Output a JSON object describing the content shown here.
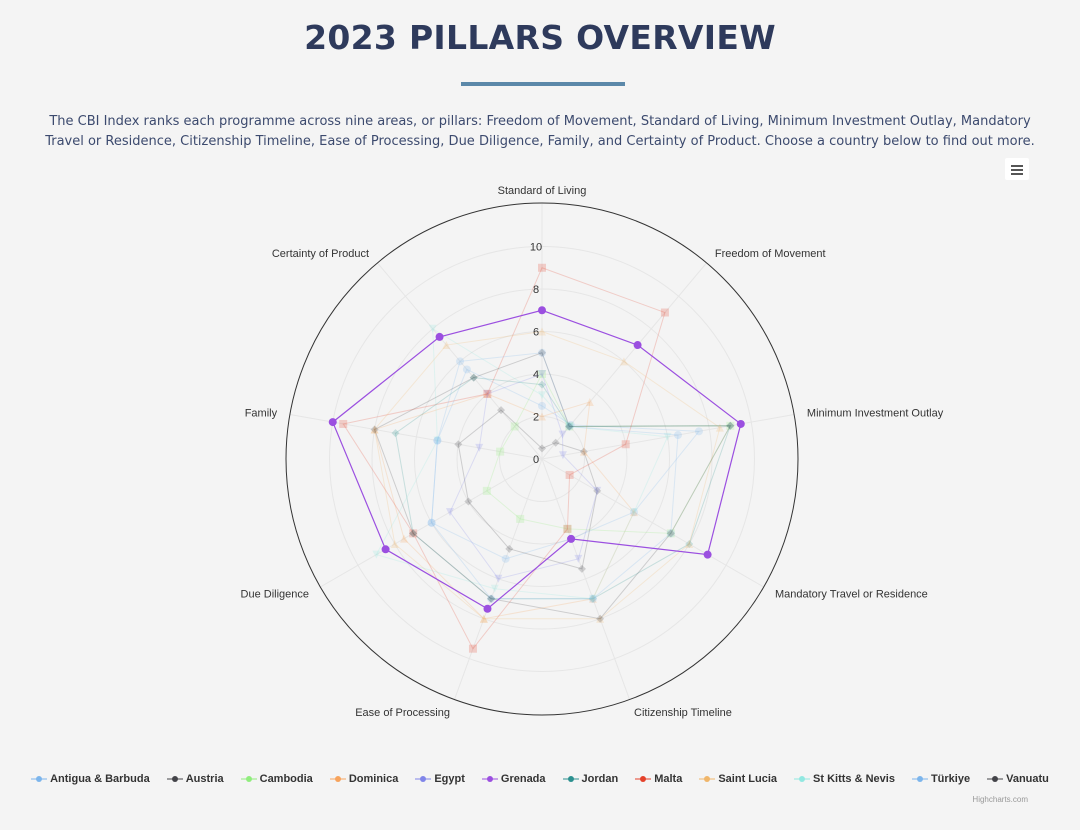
{
  "page": {
    "title": "2023 PILLARS OVERVIEW",
    "description": "The CBI Index ranks each programme across nine areas, or pillars: Freedom of Movement, Standard of Living, Minimum Investment Outlay, Mandatory Travel or Residence, Citizenship Timeline, Ease of Processing, Due Diligence, Family, and Certainty of Product. Choose a country below to find out more.",
    "menu_icon": "hamburger-menu-icon",
    "credits": "Highcharts.com",
    "accent_color": "#5b88a9",
    "title_color": "#2e3a5c"
  },
  "chart_data": {
    "type": "radar",
    "title": "",
    "categories": [
      "Standard of Living",
      "Freedom of Movement",
      "Minimum Investment Outlay",
      "Mandatory Travel or Residence",
      "Citizenship Timeline",
      "Ease of Processing",
      "Due Diligence",
      "Family",
      "Certainty of Product"
    ],
    "ylim": [
      0,
      10
    ],
    "tick_labels": [
      "0",
      "2",
      "4",
      "6",
      "8",
      "10"
    ],
    "grid": true,
    "legend_position": "bottom",
    "series": [
      {
        "name": "Antigua & Barbuda",
        "color": "#7cb5ec",
        "marker": "circle",
        "visible": false,
        "values": [
          2.5,
          2.1,
          7.5,
          5.0,
          4.0,
          5.0,
          6.0,
          5.0,
          5.5
        ]
      },
      {
        "name": "Austria",
        "color": "#434348",
        "marker": "diamond",
        "visible": false,
        "values": [
          0.5,
          1.0,
          2.0,
          3.0,
          5.5,
          4.5,
          4.0,
          4.0,
          3.0
        ]
      },
      {
        "name": "Cambodia",
        "color": "#90ed7d",
        "marker": "square",
        "visible": false,
        "values": [
          4.0,
          2.0,
          9.0,
          7.0,
          3.5,
          3.0,
          3.0,
          2.0,
          2.0
        ]
      },
      {
        "name": "Dominica",
        "color": "#f7a35c",
        "marker": "triangle",
        "visible": false,
        "values": [
          2.0,
          3.5,
          2.0,
          5.0,
          7.0,
          8.0,
          7.5,
          8.0,
          4.0
        ]
      },
      {
        "name": "Egypt",
        "color": "#8085e9",
        "marker": "triangle-down",
        "visible": false,
        "values": [
          4.0,
          1.5,
          1.0,
          3.0,
          5.0,
          6.0,
          5.0,
          3.0,
          4.0
        ]
      },
      {
        "name": "Grenada",
        "color": "#9b4fe0",
        "marker": "circle",
        "visible": true,
        "values": [
          7.0,
          7.0,
          9.5,
          9.0,
          4.0,
          7.5,
          8.5,
          10.0,
          7.5
        ]
      },
      {
        "name": "Jordan",
        "color": "#2b908f",
        "marker": "diamond",
        "visible": false,
        "values": [
          3.5,
          2.0,
          9.0,
          8.0,
          7.0,
          7.0,
          7.0,
          7.0,
          5.0
        ]
      },
      {
        "name": "Malta",
        "color": "#e4412a",
        "marker": "square",
        "visible": false,
        "values": [
          9.0,
          9.0,
          4.0,
          1.5,
          3.5,
          9.5,
          7.0,
          9.5,
          4.0
        ]
      },
      {
        "name": "Saint Lucia",
        "color": "#f0b66a",
        "marker": "triangle",
        "visible": false,
        "values": [
          6.0,
          6.0,
          8.5,
          8.0,
          8.0,
          8.0,
          8.0,
          8.0,
          7.0
        ]
      },
      {
        "name": "St Kitts & Nevis",
        "color": "#91e8e1",
        "marker": "triangle-down",
        "visible": false,
        "values": [
          3.0,
          2.0,
          6.0,
          5.0,
          7.0,
          6.5,
          9.0,
          5.0,
          8.0
        ]
      },
      {
        "name": "Türkiye",
        "color": "#7cb5ec",
        "marker": "circle",
        "visible": false,
        "values": [
          5.0,
          2.0,
          6.5,
          7.0,
          7.0,
          7.0,
          6.0,
          5.0,
          6.0
        ]
      },
      {
        "name": "Vanuatu",
        "color": "#434348",
        "marker": "diamond",
        "visible": false,
        "values": [
          5.0,
          2.0,
          9.0,
          7.0,
          8.0,
          7.0,
          7.0,
          8.0,
          5.0
        ]
      }
    ]
  }
}
